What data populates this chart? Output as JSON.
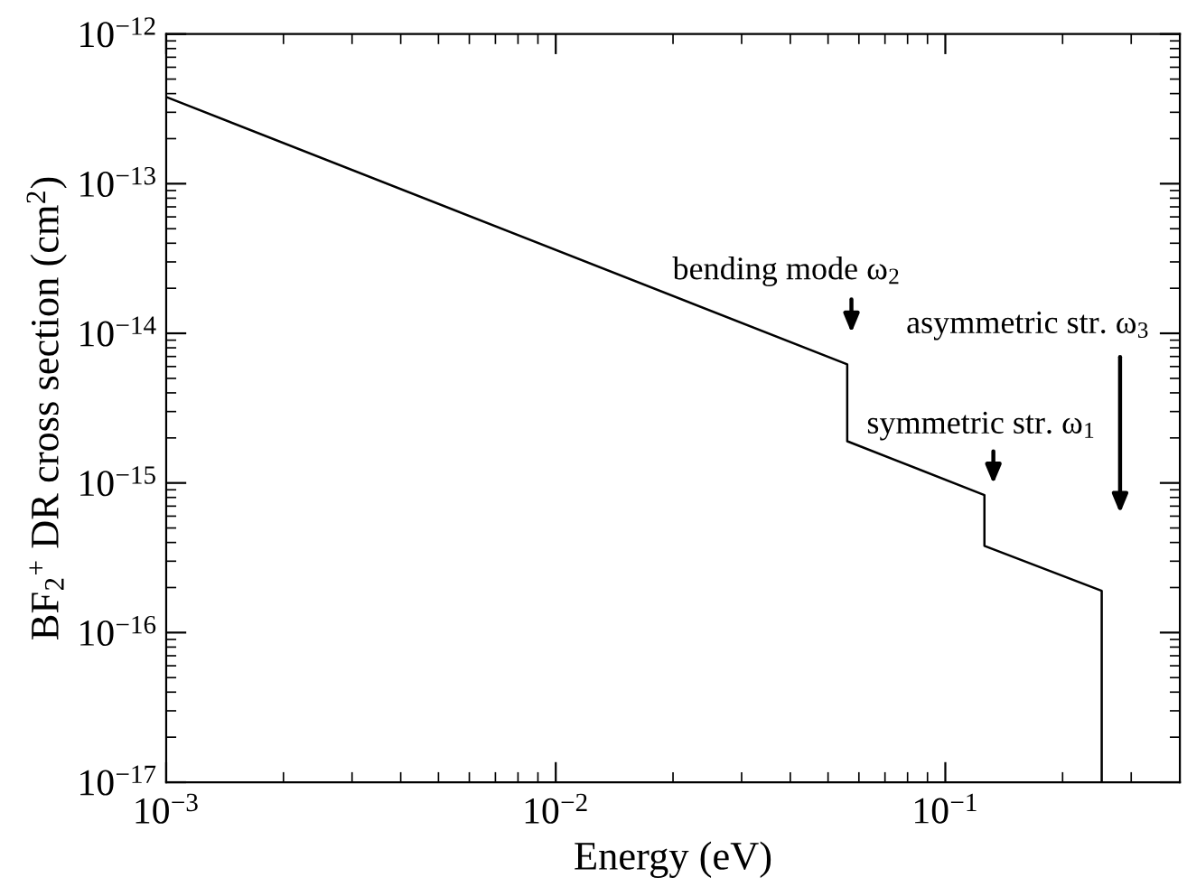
{
  "chart_data": {
    "type": "line",
    "xlabel": "Energy (eV)",
    "ylabel": "BF$_{2}$$^{+}$ DR cross section (cm$^{2}$)",
    "log": "xy",
    "grid": false,
    "marker": "none",
    "line_style": "solid",
    "xlim": [
      0.001,
      0.4
    ],
    "ylim": [
      1e-17,
      1e-12
    ],
    "xticks": [
      {
        "value": 0.001,
        "label": "10$^{−3}$"
      },
      {
        "value": 0.01,
        "label": "10$^{−2}$"
      },
      {
        "value": 0.1,
        "label": "10$^{−1}$"
      }
    ],
    "yticks": [
      {
        "value": 1e-17,
        "label": "10$^{−17}$"
      },
      {
        "value": 1e-16,
        "label": "10$^{−16}$"
      },
      {
        "value": 1e-15,
        "label": "10$^{−15}$"
      },
      {
        "value": 1e-14,
        "label": "10$^{−14}$"
      },
      {
        "value": 1e-13,
        "label": "10$^{−13}$"
      },
      {
        "value": 1e-12,
        "label": "10$^{−12}$"
      }
    ],
    "series": [
      {
        "color": "#000000",
        "x": [
          0.001,
          0.056,
          0.056,
          0.126,
          0.126,
          0.252,
          0.252
        ],
        "values": [
          3.8e-13,
          6.2e-15,
          1.9e-15,
          8.3e-16,
          3.8e-16,
          1.9e-16,
          1e-17
        ]
      }
    ],
    "annotations": [
      "bending mode ω$_{2}$",
      "symmetric str. ω$_{1}$",
      "asymmetric str. ω$_{3}$"
    ]
  }
}
